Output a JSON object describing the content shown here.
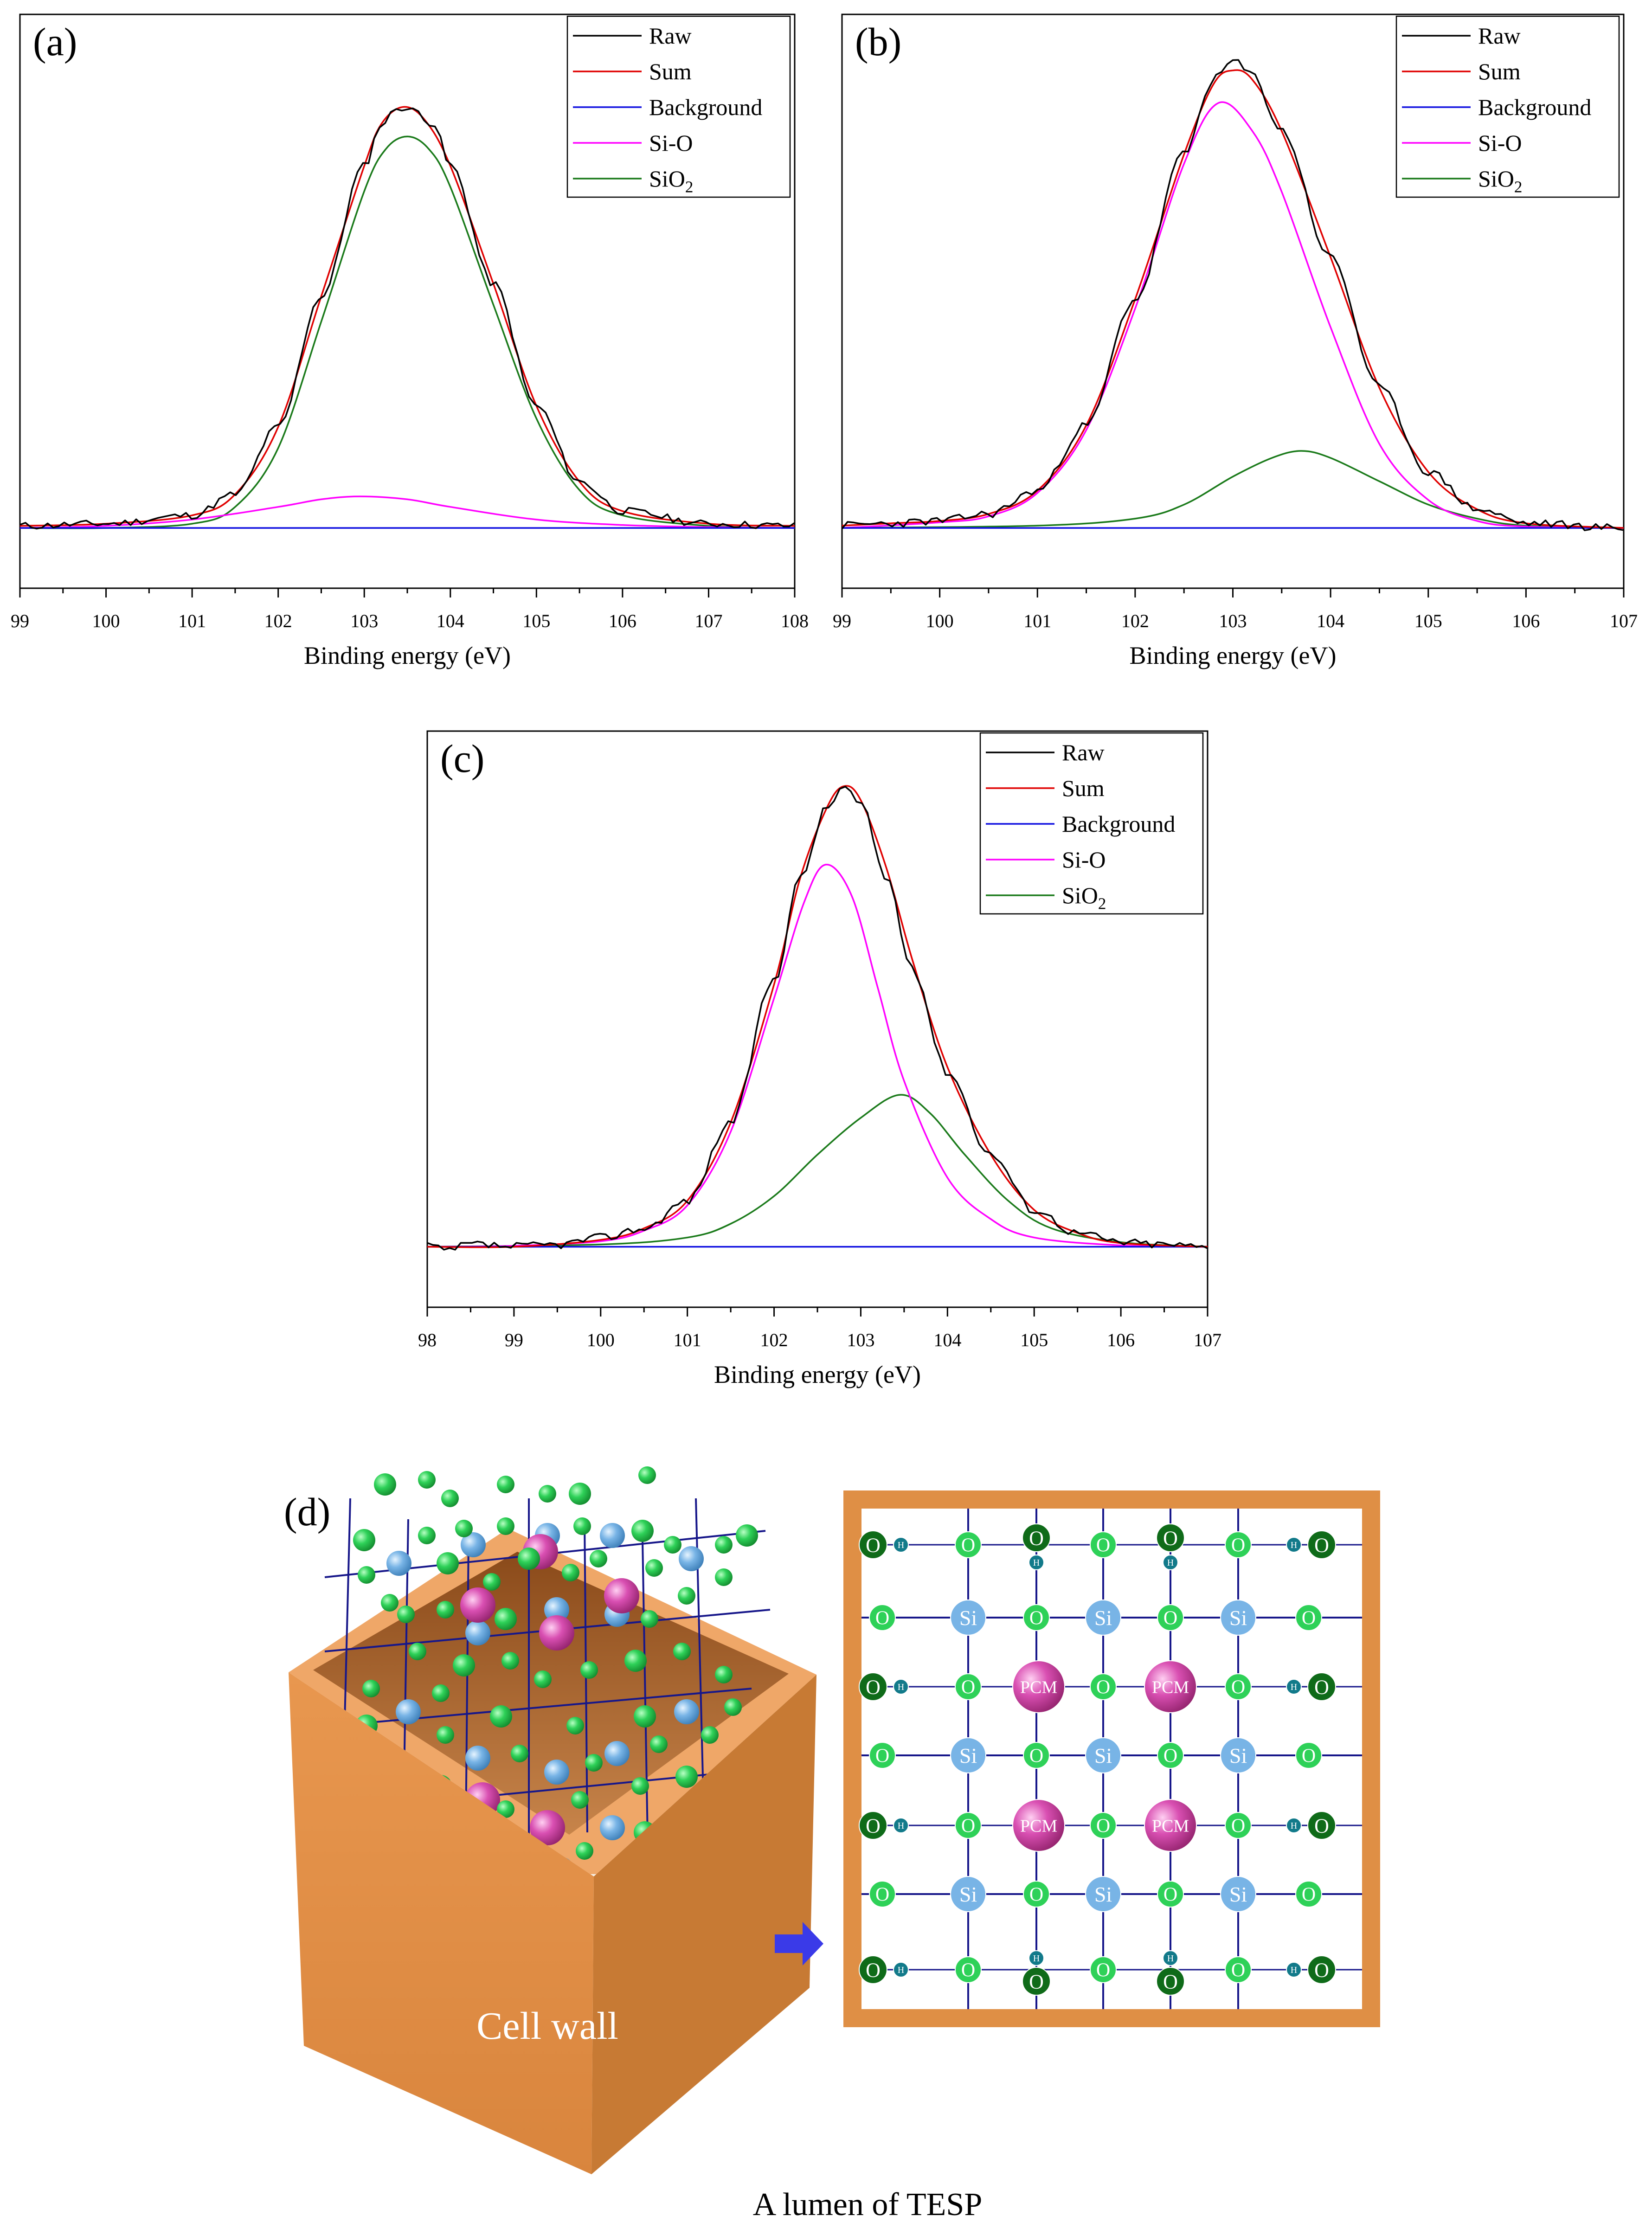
{
  "chart_data": [
    {
      "panel_label": "(a)",
      "type": "line",
      "xlabel": "Binding energy (eV)",
      "ylabel": "",
      "xlim": [
        99,
        108
      ],
      "ylim": [
        0,
        1.22
      ],
      "x_ticks": [
        "99",
        "100",
        "101",
        "102",
        "103",
        "104",
        "105",
        "106",
        "107",
        "108"
      ],
      "legend_position": "top-right",
      "series": [
        {
          "name": "Raw",
          "color": "#000000",
          "values": [
            [
              99,
              0.005
            ],
            [
              100,
              0.01
            ],
            [
              101,
              0.03
            ],
            [
              101.5,
              0.08
            ],
            [
              102,
              0.24
            ],
            [
              102.5,
              0.55
            ],
            [
              103,
              0.86
            ],
            [
              103.2,
              0.96
            ],
            [
              103.4,
              1.0
            ],
            [
              103.6,
              0.99
            ],
            [
              103.8,
              0.96
            ],
            [
              104,
              0.86
            ],
            [
              104.5,
              0.58
            ],
            [
              105,
              0.29
            ],
            [
              105.5,
              0.11
            ],
            [
              106,
              0.04
            ],
            [
              107,
              0.01
            ],
            [
              108,
              0.005
            ]
          ]
        },
        {
          "name": "Sum",
          "color": "#e00000",
          "values": [
            [
              99,
              0.005
            ],
            [
              100,
              0.01
            ],
            [
              101,
              0.03
            ],
            [
              101.5,
              0.08
            ],
            [
              102,
              0.24
            ],
            [
              102.5,
              0.55
            ],
            [
              103,
              0.86
            ],
            [
              103.2,
              0.96
            ],
            [
              103.45,
              1.0
            ],
            [
              103.7,
              0.97
            ],
            [
              104,
              0.86
            ],
            [
              104.5,
              0.58
            ],
            [
              105,
              0.29
            ],
            [
              105.5,
              0.11
            ],
            [
              106,
              0.04
            ],
            [
              107,
              0.01
            ],
            [
              108,
              0.005
            ]
          ]
        },
        {
          "name": "Background",
          "color": "#1010e0",
          "values": [
            [
              99,
              0.0
            ],
            [
              108,
              0.0
            ]
          ]
        },
        {
          "name": "Si-O",
          "color": "#ff00ff",
          "values": [
            [
              99,
              0.0
            ],
            [
              100,
              0.005
            ],
            [
              101,
              0.02
            ],
            [
              102,
              0.05
            ],
            [
              102.5,
              0.068
            ],
            [
              102.95,
              0.075
            ],
            [
              103.5,
              0.068
            ],
            [
              104,
              0.05
            ],
            [
              105,
              0.02
            ],
            [
              106,
              0.007
            ],
            [
              107,
              0.002
            ],
            [
              108,
              0.0
            ]
          ]
        },
        {
          "name": "SiO₂",
          "color": "#1a7a1a",
          "values": [
            [
              99,
              0.0
            ],
            [
              100,
              0.0
            ],
            [
              101,
              0.01
            ],
            [
              101.5,
              0.05
            ],
            [
              102,
              0.19
            ],
            [
              102.5,
              0.49
            ],
            [
              103,
              0.8
            ],
            [
              103.25,
              0.9
            ],
            [
              103.5,
              0.93
            ],
            [
              103.75,
              0.9
            ],
            [
              104,
              0.81
            ],
            [
              104.5,
              0.53
            ],
            [
              105,
              0.26
            ],
            [
              105.5,
              0.09
            ],
            [
              106,
              0.03
            ],
            [
              107,
              0.005
            ],
            [
              108,
              0.0
            ]
          ]
        }
      ]
    },
    {
      "panel_label": "(b)",
      "type": "line",
      "xlabel": "Binding energy (eV)",
      "ylabel": "",
      "xlim": [
        99,
        107
      ],
      "ylim": [
        0,
        1.1
      ],
      "x_ticks": [
        "99",
        "100",
        "101",
        "102",
        "103",
        "104",
        "105",
        "106",
        "107"
      ],
      "legend_position": "top-right",
      "series": [
        {
          "name": "Raw",
          "color": "#000000",
          "values": [
            [
              99,
              0.005
            ],
            [
              99.5,
              0.01
            ],
            [
              100,
              0.015
            ],
            [
              100.5,
              0.03
            ],
            [
              101,
              0.08
            ],
            [
              101.5,
              0.22
            ],
            [
              102,
              0.49
            ],
            [
              102.5,
              0.8
            ],
            [
              102.8,
              0.96
            ],
            [
              103,
              1.0
            ],
            [
              103.2,
              0.97
            ],
            [
              103.5,
              0.85
            ],
            [
              104,
              0.58
            ],
            [
              104.5,
              0.3
            ],
            [
              105,
              0.12
            ],
            [
              105.5,
              0.04
            ],
            [
              106,
              0.01
            ],
            [
              107,
              0.0
            ]
          ]
        },
        {
          "name": "Sum",
          "color": "#e00000",
          "values": [
            [
              99,
              0.005
            ],
            [
              99.5,
              0.01
            ],
            [
              100,
              0.015
            ],
            [
              100.5,
              0.03
            ],
            [
              101,
              0.08
            ],
            [
              101.5,
              0.22
            ],
            [
              102,
              0.49
            ],
            [
              102.5,
              0.8
            ],
            [
              102.8,
              0.95
            ],
            [
              103,
              0.98
            ],
            [
              103.2,
              0.96
            ],
            [
              103.5,
              0.85
            ],
            [
              104,
              0.58
            ],
            [
              104.5,
              0.3
            ],
            [
              105,
              0.12
            ],
            [
              105.5,
              0.04
            ],
            [
              106,
              0.01
            ],
            [
              107,
              0.0
            ]
          ]
        },
        {
          "name": "Background",
          "color": "#1010e0",
          "values": [
            [
              99,
              0.0
            ],
            [
              107,
              0.0
            ]
          ]
        },
        {
          "name": "Si-O",
          "color": "#ff00ff",
          "values": [
            [
              99,
              0.0
            ],
            [
              100,
              0.012
            ],
            [
              100.5,
              0.025
            ],
            [
              101,
              0.075
            ],
            [
              101.5,
              0.21
            ],
            [
              102,
              0.47
            ],
            [
              102.5,
              0.78
            ],
            [
              102.85,
              0.91
            ],
            [
              103.2,
              0.85
            ],
            [
              103.5,
              0.72
            ],
            [
              104,
              0.43
            ],
            [
              104.5,
              0.18
            ],
            [
              105,
              0.06
            ],
            [
              105.5,
              0.015
            ],
            [
              106,
              0.003
            ],
            [
              107,
              0.0
            ]
          ]
        },
        {
          "name": "SiO₂",
          "color": "#1a7a1a",
          "values": [
            [
              99,
              0.0
            ],
            [
              101,
              0.005
            ],
            [
              102,
              0.02
            ],
            [
              102.5,
              0.05
            ],
            [
              103,
              0.11
            ],
            [
              103.4,
              0.15
            ],
            [
              103.7,
              0.165
            ],
            [
              104,
              0.15
            ],
            [
              104.5,
              0.1
            ],
            [
              105,
              0.05
            ],
            [
              105.5,
              0.02
            ],
            [
              106,
              0.005
            ],
            [
              107,
              0.0
            ]
          ]
        }
      ]
    },
    {
      "panel_label": "(c)",
      "type": "line",
      "xlabel": "Binding energy (eV)",
      "ylabel": "",
      "xlim": [
        98,
        107
      ],
      "ylim": [
        0,
        1.12
      ],
      "x_ticks": [
        "98",
        "99",
        "100",
        "101",
        "102",
        "103",
        "104",
        "105",
        "106",
        "107"
      ],
      "legend_position": "top-right",
      "series": [
        {
          "name": "Raw",
          "color": "#000000",
          "values": [
            [
              98,
              0.005
            ],
            [
              98.2,
              -0.01
            ],
            [
              98.5,
              0.005
            ],
            [
              99,
              0.0
            ],
            [
              99.5,
              0.005
            ],
            [
              100,
              0.02
            ],
            [
              100.5,
              0.04
            ],
            [
              101,
              0.1
            ],
            [
              101.5,
              0.27
            ],
            [
              102,
              0.58
            ],
            [
              102.3,
              0.8
            ],
            [
              102.6,
              0.95
            ],
            [
              102.8,
              1.0
            ],
            [
              103,
              0.96
            ],
            [
              103.3,
              0.8
            ],
            [
              103.6,
              0.6
            ],
            [
              104,
              0.38
            ],
            [
              104.5,
              0.2
            ],
            [
              105,
              0.08
            ],
            [
              105.5,
              0.03
            ],
            [
              106,
              0.01
            ],
            [
              106.5,
              0.005
            ],
            [
              107,
              0.0
            ]
          ]
        },
        {
          "name": "Sum",
          "color": "#e00000",
          "values": [
            [
              98,
              0.0
            ],
            [
              99,
              0.0
            ],
            [
              100,
              0.015
            ],
            [
              100.5,
              0.04
            ],
            [
              101,
              0.1
            ],
            [
              101.5,
              0.27
            ],
            [
              102,
              0.57
            ],
            [
              102.3,
              0.8
            ],
            [
              102.6,
              0.95
            ],
            [
              102.8,
              1.0
            ],
            [
              103,
              0.97
            ],
            [
              103.3,
              0.82
            ],
            [
              103.6,
              0.62
            ],
            [
              104,
              0.39
            ],
            [
              104.5,
              0.2
            ],
            [
              105,
              0.08
            ],
            [
              105.5,
              0.03
            ],
            [
              106,
              0.008
            ],
            [
              107,
              0.0
            ]
          ]
        },
        {
          "name": "Background",
          "color": "#1010e0",
          "values": [
            [
              98,
              0.0
            ],
            [
              107,
              0.0
            ]
          ]
        },
        {
          "name": "Si-O",
          "color": "#ff00ff",
          "values": [
            [
              98,
              0.0
            ],
            [
              99,
              0.002
            ],
            [
              100,
              0.012
            ],
            [
              100.5,
              0.035
            ],
            [
              101,
              0.09
            ],
            [
              101.5,
              0.25
            ],
            [
              102,
              0.54
            ],
            [
              102.35,
              0.75
            ],
            [
              102.6,
              0.83
            ],
            [
              102.9,
              0.76
            ],
            [
              103.2,
              0.56
            ],
            [
              103.5,
              0.36
            ],
            [
              104,
              0.15
            ],
            [
              104.5,
              0.06
            ],
            [
              105,
              0.02
            ],
            [
              106,
              0.003
            ],
            [
              107,
              0.0
            ]
          ]
        },
        {
          "name": "SiO₂",
          "color": "#1a7a1a",
          "values": [
            [
              98,
              0.0
            ],
            [
              100,
              0.005
            ],
            [
              101,
              0.02
            ],
            [
              101.5,
              0.05
            ],
            [
              102,
              0.11
            ],
            [
              102.5,
              0.2
            ],
            [
              103,
              0.28
            ],
            [
              103.45,
              0.33
            ],
            [
              103.8,
              0.29
            ],
            [
              104.2,
              0.2
            ],
            [
              104.7,
              0.1
            ],
            [
              105.2,
              0.04
            ],
            [
              106,
              0.01
            ],
            [
              107,
              0.0
            ]
          ]
        }
      ]
    }
  ],
  "diagram": {
    "panel_label": "(d)",
    "box_label": "Cell wall",
    "caption": "A lumen of TESP",
    "atoms": {
      "oxygen": "O",
      "silicon": "Si",
      "hydrogen": "H",
      "pcm": "PCM"
    },
    "colors": {
      "wood": "#df8f45",
      "wood_light": "#efa768",
      "wood_dark": "#c77a34",
      "oxygen_green": "#2ed158",
      "hydroxyl_green": "#0f6b19",
      "silicon_blue": "#78b4e6",
      "hydrogen_teal": "#127a8a",
      "pcm_magenta": "#c93a9e",
      "bond_navy": "#17178a",
      "arrow_blue": "#3a3ae8"
    }
  }
}
